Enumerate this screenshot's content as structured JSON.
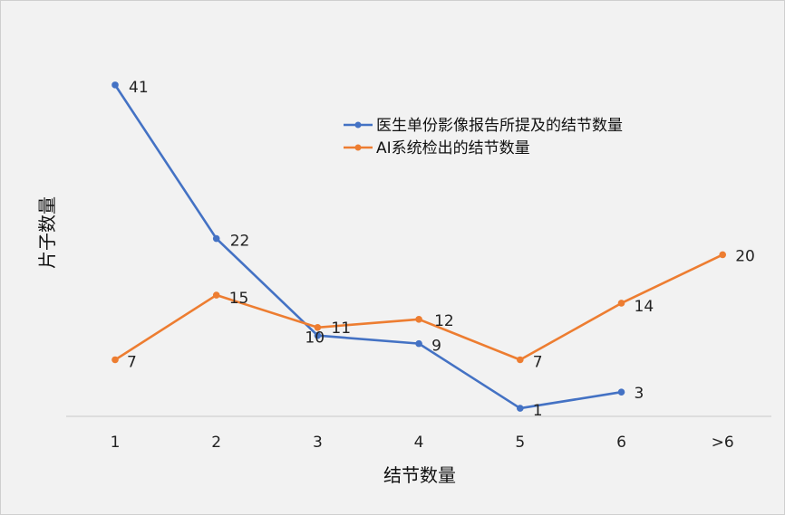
{
  "chart_data": {
    "type": "line",
    "categories": [
      "1",
      "2",
      "3",
      "4",
      "5",
      "6",
      ">6"
    ],
    "xlabel": "结节数量",
    "ylabel": "片子数量",
    "ylim": [
      0,
      44
    ],
    "grid": false,
    "legend_position": "top-right",
    "series": [
      {
        "name": "医生单份影像报告所提及的结节数量",
        "color": "#4472c4",
        "values": [
          41,
          22,
          10,
          9,
          1,
          3,
          null
        ]
      },
      {
        "name": "AI系统检出的结节数量",
        "color": "#ed7d31",
        "values": [
          7,
          15,
          11,
          12,
          7,
          14,
          20
        ]
      }
    ]
  }
}
